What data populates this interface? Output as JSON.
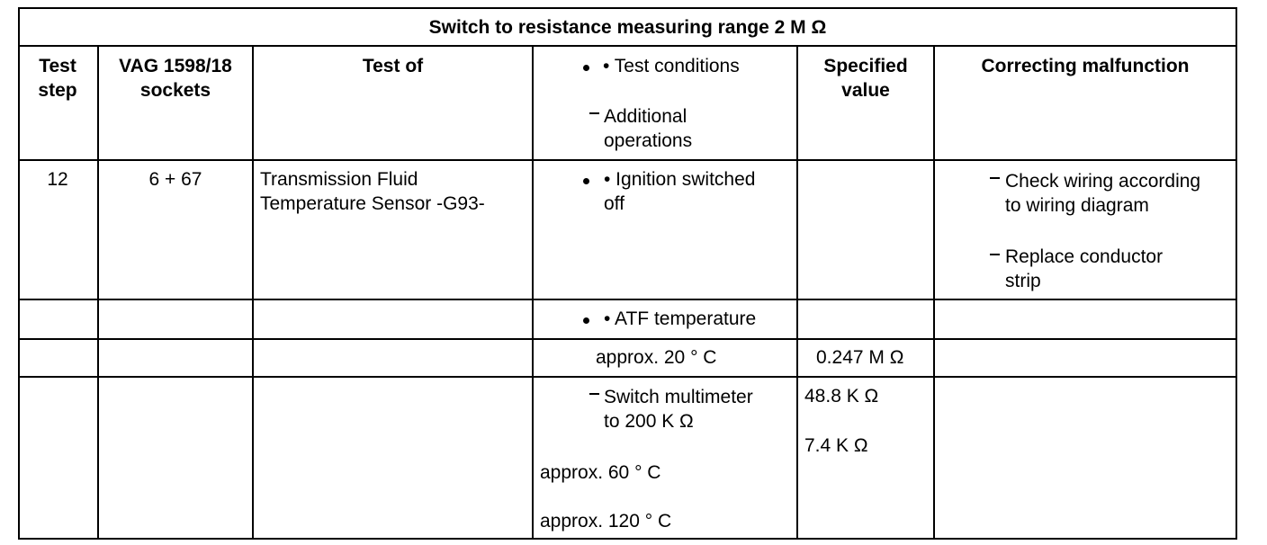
{
  "title": "Switch to resistance measuring range 2 M Ω",
  "headers": {
    "test_step": [
      "Test",
      "step"
    ],
    "sockets": [
      "VAG 1598/18",
      "sockets"
    ],
    "test_of": "Test of",
    "conditions": "• Test conditions",
    "additional": [
      "Additional",
      "operations"
    ],
    "specified": [
      "Specified",
      "value"
    ],
    "correcting": "Correcting malfunction"
  },
  "row12": {
    "step": "12",
    "sockets": "6 + 67",
    "test_of": [
      "Transmission Fluid",
      "Temperature Sensor -G93-"
    ],
    "condition": [
      "• Ignition switched",
      "off"
    ],
    "correct": [
      [
        "Check wiring according",
        "to wiring diagram"
      ],
      [
        "Replace conductor",
        "strip"
      ]
    ]
  },
  "atf": "• ATF temperature",
  "approx20": {
    "label": "approx. 20 ° C",
    "value": "0.247 M Ω"
  },
  "switch": {
    "label": [
      "Switch multimeter",
      "to 200 K Ω"
    ],
    "approx60": "approx. 60 ° C",
    "approx120": "approx. 120 ° C",
    "value60": "48.8 K Ω",
    "value120": "7.4 K Ω"
  }
}
